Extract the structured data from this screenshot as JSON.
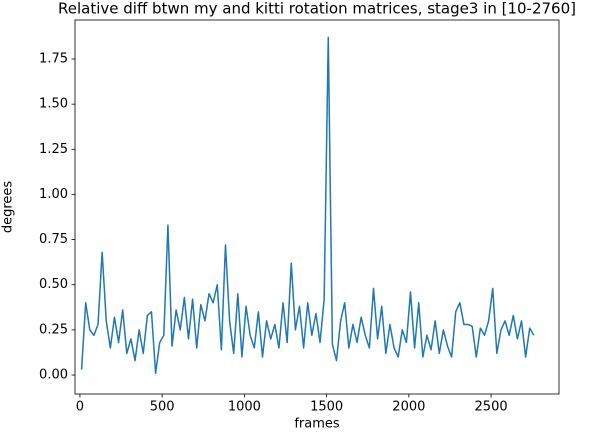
{
  "chart_data": {
    "type": "line",
    "title": "Relative diff btwn my and kitti rotation matrices, stage3 in [10-2760]",
    "xlabel": "frames",
    "ylabel": "degrees",
    "x": [
      10,
      35,
      60,
      85,
      110,
      135,
      160,
      185,
      210,
      235,
      260,
      285,
      310,
      335,
      360,
      385,
      410,
      435,
      460,
      485,
      510,
      535,
      560,
      585,
      610,
      635,
      660,
      685,
      710,
      735,
      760,
      785,
      810,
      835,
      860,
      885,
      910,
      935,
      960,
      985,
      1010,
      1035,
      1060,
      1085,
      1110,
      1135,
      1160,
      1185,
      1210,
      1235,
      1260,
      1285,
      1310,
      1335,
      1360,
      1385,
      1410,
      1435,
      1460,
      1485,
      1510,
      1535,
      1560,
      1585,
      1610,
      1635,
      1660,
      1685,
      1710,
      1735,
      1760,
      1785,
      1810,
      1835,
      1860,
      1885,
      1910,
      1935,
      1960,
      1985,
      2010,
      2035,
      2060,
      2085,
      2110,
      2135,
      2160,
      2185,
      2210,
      2235,
      2260,
      2285,
      2310,
      2335,
      2360,
      2385,
      2410,
      2435,
      2460,
      2485,
      2510,
      2535,
      2560,
      2585,
      2610,
      2635,
      2660,
      2685,
      2710,
      2735,
      2760
    ],
    "series": [
      {
        "name": "degrees",
        "color": "#1f77b4",
        "values": [
          0.03,
          0.4,
          0.25,
          0.22,
          0.28,
          0.68,
          0.3,
          0.15,
          0.32,
          0.18,
          0.36,
          0.12,
          0.2,
          0.08,
          0.25,
          0.12,
          0.33,
          0.35,
          0.01,
          0.18,
          0.22,
          0.83,
          0.16,
          0.36,
          0.25,
          0.43,
          0.2,
          0.42,
          0.15,
          0.39,
          0.3,
          0.45,
          0.4,
          0.5,
          0.14,
          0.72,
          0.3,
          0.12,
          0.45,
          0.1,
          0.38,
          0.22,
          0.15,
          0.35,
          0.1,
          0.3,
          0.2,
          0.28,
          0.15,
          0.4,
          0.18,
          0.62,
          0.25,
          0.38,
          0.15,
          0.4,
          0.22,
          0.34,
          0.18,
          0.42,
          1.87,
          0.17,
          0.08,
          0.3,
          0.4,
          0.15,
          0.28,
          0.18,
          0.32,
          0.22,
          0.15,
          0.48,
          0.2,
          0.38,
          0.12,
          0.28,
          0.15,
          0.1,
          0.25,
          0.18,
          0.46,
          0.15,
          0.4,
          0.1,
          0.22,
          0.14,
          0.3,
          0.12,
          0.25,
          0.16,
          0.1,
          0.35,
          0.4,
          0.28,
          0.28,
          0.27,
          0.1,
          0.26,
          0.22,
          0.3,
          0.48,
          0.12,
          0.25,
          0.3,
          0.22,
          0.33,
          0.2,
          0.3,
          0.1,
          0.26,
          0.22
        ]
      }
    ],
    "xlim": [
      -30,
      2913
    ],
    "ylim": [
      -0.105,
      1.966
    ],
    "xticks": [
      0,
      500,
      1000,
      1500,
      2000,
      2500
    ],
    "yticks": [
      {
        "value": 0,
        "label": "0.00"
      },
      0.25,
      {
        "value": 0.5,
        "label": "0.50"
      },
      0.75,
      {
        "value": 1,
        "label": "1.00"
      },
      1.25,
      {
        "value": 1.5,
        "label": "1.50"
      },
      1.75
    ]
  }
}
